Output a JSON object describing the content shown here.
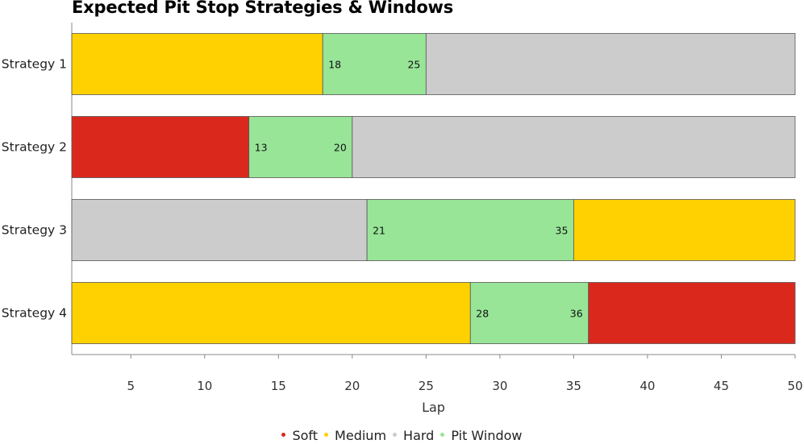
{
  "chart_data": {
    "type": "bar",
    "orientation": "horizontal",
    "stacked": true,
    "title": "Expected Pit Stop Strategies & Windows",
    "xlabel": "Lap",
    "ylabel": "",
    "xlim": [
      1,
      50
    ],
    "xticks": [
      5,
      10,
      15,
      20,
      25,
      30,
      35,
      40,
      45,
      50
    ],
    "grid": false,
    "legend_position": "bottom",
    "legend": [
      {
        "label": "Soft",
        "color": "#da291c"
      },
      {
        "label": "Medium",
        "color": "#ffd100"
      },
      {
        "label": "Hard",
        "color": "#cccccc"
      },
      {
        "label": "Pit Window",
        "color": "#98e598"
      }
    ],
    "categories": [
      "Strategy 1",
      "Strategy 2",
      "Strategy 3",
      "Strategy 4"
    ],
    "strategies": [
      {
        "name": "Strategy 1",
        "segments": [
          {
            "compound": "Medium",
            "start": 1,
            "end": 18
          },
          {
            "compound": "Pit Window",
            "start": 18,
            "end": 25
          },
          {
            "compound": "Hard",
            "start": 25,
            "end": 50
          }
        ],
        "window_labels": [
          "18",
          "25"
        ]
      },
      {
        "name": "Strategy 2",
        "segments": [
          {
            "compound": "Soft",
            "start": 1,
            "end": 13
          },
          {
            "compound": "Pit Window",
            "start": 13,
            "end": 20
          },
          {
            "compound": "Hard",
            "start": 20,
            "end": 50
          }
        ],
        "window_labels": [
          "13",
          "20"
        ]
      },
      {
        "name": "Strategy 3",
        "segments": [
          {
            "compound": "Hard",
            "start": 1,
            "end": 21
          },
          {
            "compound": "Pit Window",
            "start": 21,
            "end": 35
          },
          {
            "compound": "Medium",
            "start": 35,
            "end": 50
          }
        ],
        "window_labels": [
          "21",
          "35"
        ]
      },
      {
        "name": "Strategy 4",
        "segments": [
          {
            "compound": "Medium",
            "start": 1,
            "end": 28
          },
          {
            "compound": "Pit Window",
            "start": 28,
            "end": 36
          },
          {
            "compound": "Soft",
            "start": 36,
            "end": 50
          }
        ],
        "window_labels": [
          "28",
          "36"
        ]
      }
    ]
  }
}
